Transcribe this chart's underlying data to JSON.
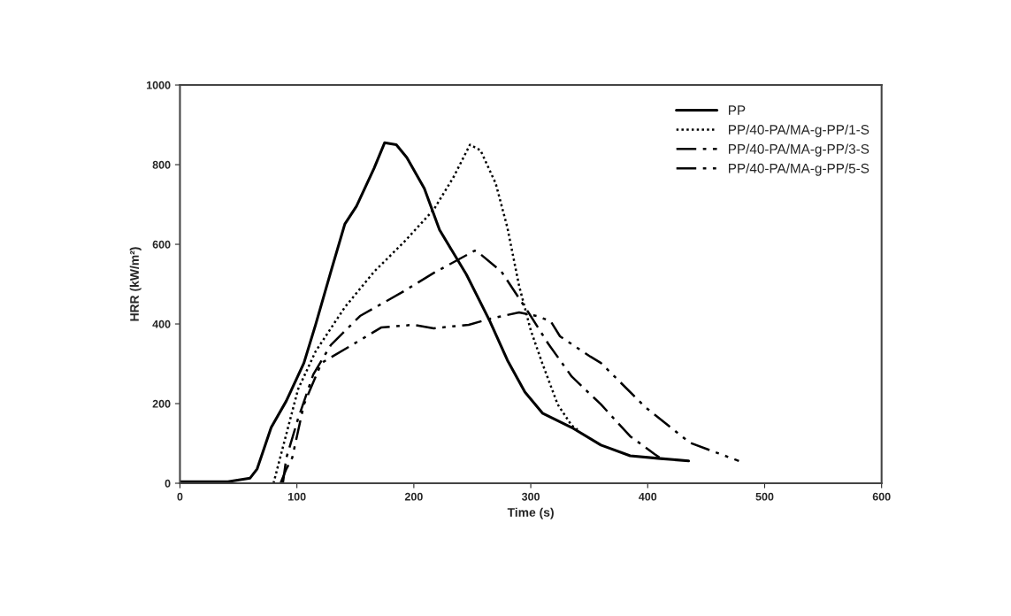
{
  "chart_data": {
    "type": "line",
    "xlabel": "Time (s)",
    "ylabel": "HRR (kW/m²)",
    "xlim": [
      0,
      600
    ],
    "xticks": [
      0,
      100,
      200,
      300,
      400,
      500,
      600
    ],
    "ylim": [
      0,
      1000
    ],
    "yticks": [
      0,
      200,
      400,
      600,
      800,
      1000
    ],
    "grid": false,
    "legend": "top right",
    "marker": "none",
    "series": [
      {
        "name": "PP",
        "color": "#000000",
        "line_style": "solid",
        "x": [
          0,
          41,
          60,
          66,
          78,
          91,
          106,
          116,
          129,
          141,
          151,
          166,
          175,
          185,
          194,
          209,
          222,
          245,
          265,
          280,
          295,
          310,
          335,
          360,
          385,
          411,
          435
        ],
        "values": [
          4,
          4,
          13,
          36,
          140,
          207,
          302,
          398,
          531,
          651,
          696,
          791,
          855,
          850,
          818,
          740,
          636,
          524,
          407,
          309,
          229,
          176,
          140,
          96,
          69,
          62,
          56
        ]
      },
      {
        "name": "PP/40-PA/MA-g-PP/1-S",
        "color": "#000000",
        "line_style": "dotted",
        "x": [
          80,
          91,
          101,
          116,
          141,
          166,
          192,
          217,
          234,
          248,
          257,
          270,
          280,
          290,
          300,
          310,
          323,
          335,
          340
        ],
        "values": [
          0,
          124,
          236,
          331,
          442,
          531,
          607,
          687,
          769,
          850,
          836,
          753,
          642,
          496,
          384,
          300,
          198,
          145,
          135
        ]
      },
      {
        "name": "PP/40-PA/MA-g-PP/3-S",
        "color": "#000000",
        "line_style": "dashdot",
        "x": [
          88,
          91,
          101,
          114,
          129,
          154,
          189,
          217,
          252,
          255,
          275,
          298,
          315,
          335,
          360,
          385,
          406,
          410
        ],
        "values": [
          0,
          64,
          162,
          273,
          347,
          420,
          478,
          528,
          584,
          580,
          531,
          429,
          350,
          268,
          198,
          118,
          73,
          65
        ]
      },
      {
        "name": "PP/40-PA/MA-g-PP/5-S",
        "color": "#000000",
        "line_style": "dashdotdot",
        "x": [
          86,
          91,
          96,
          106,
          121,
          147,
          172,
          200,
          217,
          247,
          265,
          290,
          305,
          317,
          325,
          351,
          360,
          398,
          436,
          456,
          478
        ],
        "values": [
          0,
          36,
          64,
          198,
          302,
          347,
          391,
          398,
          389,
          398,
          413,
          429,
          420,
          407,
          369,
          318,
          302,
          191,
          102,
          80,
          56
        ]
      }
    ]
  }
}
